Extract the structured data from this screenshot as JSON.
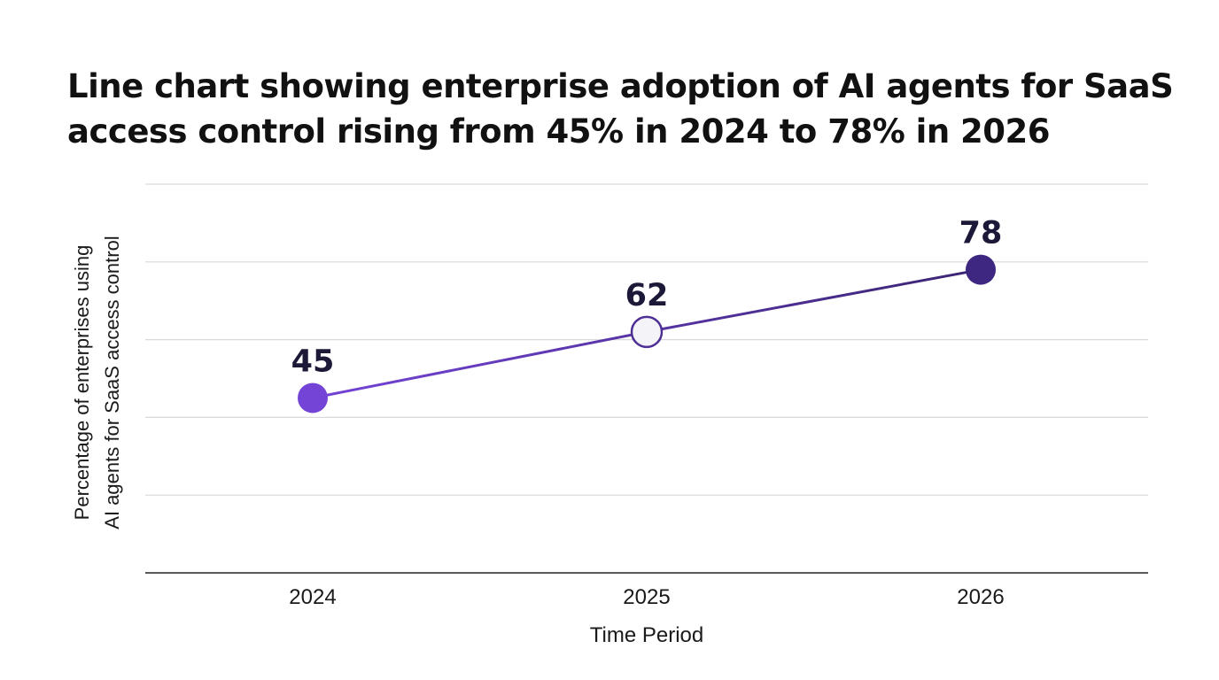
{
  "chart_data": {
    "type": "line",
    "title": "Line chart showing enterprise adoption of AI agents for SaaS access control rising from 45% in 2024 to 78% in 2026",
    "title_lines": [
      "Line chart showing enterprise adoption of AI agents for SaaS",
      "access control rising from 45% in 2024 to 78% in 2026"
    ],
    "xlabel": "Time Period",
    "ylabel": "Percentage of enterprises using AI agents for SaaS access control",
    "ylabel_lines": [
      "Percentage of enterprises using",
      "AI agents for SaaS access control"
    ],
    "categories": [
      "2024",
      "2025",
      "2026"
    ],
    "values": [
      45,
      62,
      78
    ],
    "ylim": [
      0,
      100
    ],
    "grid": true,
    "legend": "none",
    "data_labels": true
  },
  "colors": {
    "line_start": "#7444d6",
    "line_end": "#3a2472",
    "point_2024": "#7444d6",
    "point_2025_fill": "#f4f3f7",
    "point_2025_stroke": "#4e2f94",
    "point_2026": "#3e2780",
    "data_label": "#1b1838",
    "gridline": "#d9d9d9",
    "axis": "#222222"
  }
}
